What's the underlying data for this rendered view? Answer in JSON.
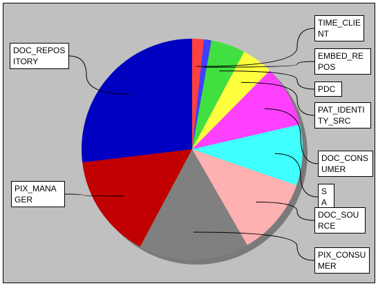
{
  "chart_data": {
    "type": "pie",
    "categories": [
      "TIME_CLIENT",
      "EMBED_REPOS",
      "PDC",
      "PAT_IDENTITY_SRC",
      "DOC_CONSUMER",
      "SA",
      "DOC_SOURCE",
      "PIX_CONSUMER",
      "PIX_MANAGER",
      "DOC_REPOSITORY"
    ],
    "values": [
      1.7,
      1.1,
      5,
      4.6,
      9,
      8.9,
      11.4,
      16.1,
      15.3,
      26.9
    ],
    "colors": [
      "#ff4040",
      "#4040ff",
      "#40e040",
      "#ffff40",
      "#ff40ff",
      "#40ffff",
      "#ffb0b0",
      "#808080",
      "#c00000",
      "#0000c0"
    ]
  }
}
